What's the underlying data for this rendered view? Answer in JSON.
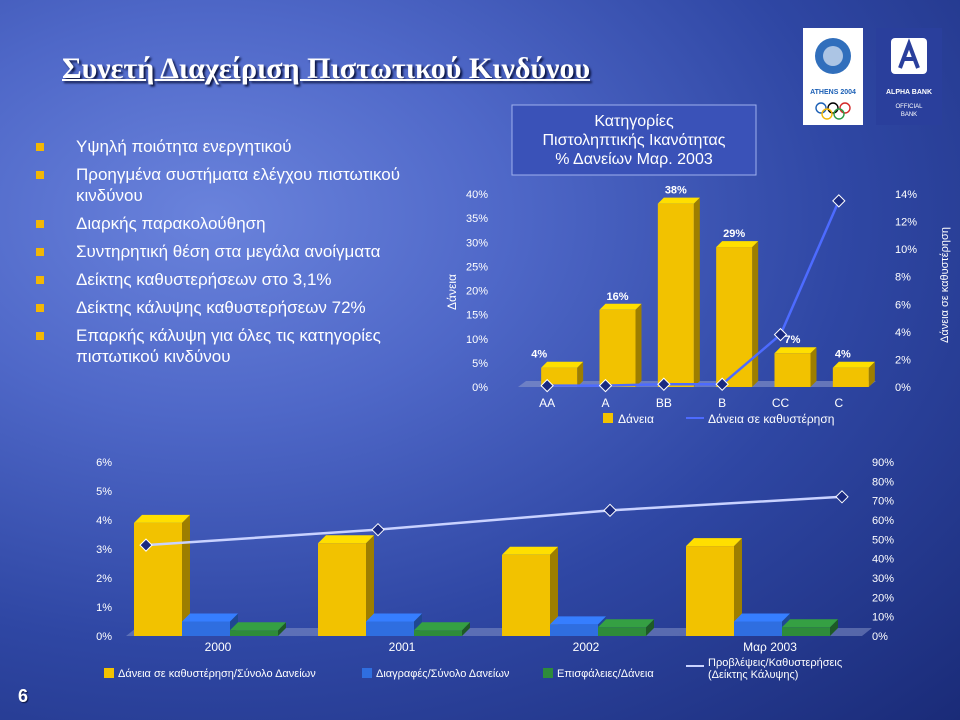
{
  "title": "Συνετή Διαχείριση Πιστωτικού Κινδύνου",
  "page_number": "6",
  "bullets": [
    [
      "Υψηλή ποιότητα ενεργητικού"
    ],
    [
      "Προηγμένα συστήματα ελέγχου πιστωτικού",
      "κινδύνου"
    ],
    [
      "Διαρκής παρακολούθηση"
    ],
    [
      "Συντηρητική θέση στα μεγάλα ανοίγματα"
    ],
    [
      "Δείκτης καθυστερήσεων στο 3,1%"
    ],
    [
      "Δείκτης κάλυψης καθυστερήσεων 72%"
    ],
    [
      "Επαρκής κάλυψη για όλες τις κατηγορίες",
      "πιστωτικού κινδύνου"
    ]
  ],
  "logos": {
    "athens": {
      "text": "ATHENS 2004",
      "colors": [
        "#1b5fb5",
        "#000000",
        "#d42a2a",
        "#f2b705",
        "#2a9a44"
      ]
    },
    "alpha": {
      "line1": "ALPHA BANK",
      "line2a": "OFFICIAL",
      "line2b": "BANK"
    }
  },
  "colors": {
    "bar_yellow": "#f2c200",
    "bar_blue": "#2f6ee0",
    "bar_green": "#2e8b3a",
    "line": "#4d6bff",
    "bullet": "#f2b705"
  },
  "chart_data": [
    {
      "type": "bar",
      "title_lines": [
        "Κατηγορίες",
        "Πιστοληπτικής Ικανότητας",
        "% Δανείων Μαρ. 2003"
      ],
      "categories": [
        "AA",
        "A",
        "BB",
        "B",
        "CC",
        "C"
      ],
      "ylim": [
        0,
        40
      ],
      "yticks": [
        "0%",
        "5%",
        "10%",
        "15%",
        "20%",
        "25%",
        "30%",
        "35%",
        "40%"
      ],
      "ylabel": "Δάνεια",
      "y2lim": [
        0,
        14
      ],
      "y2ticks": [
        "0%",
        "2%",
        "4%",
        "6%",
        "8%",
        "10%",
        "12%",
        "14%"
      ],
      "y2label": "Δάνεια σε καθυστέρηση",
      "series": [
        {
          "name": "Δάνεια",
          "axis": "left",
          "kind": "bar3d",
          "values": [
            4,
            16,
            38,
            29,
            7,
            4
          ],
          "labels": [
            "4%",
            "16%",
            "38%",
            "29%",
            "7%",
            "4%"
          ]
        },
        {
          "name": "Δάνεια σε καθυστέρηση",
          "axis": "right",
          "kind": "line",
          "values": [
            0.1,
            0.1,
            0.2,
            0.2,
            3.8,
            13.5
          ]
        }
      ],
      "legend": "bottom"
    },
    {
      "type": "bar",
      "categories": [
        "2000",
        "2001",
        "2002",
        "Μαρ 2003"
      ],
      "ylim": [
        0,
        6
      ],
      "yticks": [
        "0%",
        "1%",
        "2%",
        "3%",
        "4%",
        "5%",
        "6%"
      ],
      "y2lim": [
        0,
        90
      ],
      "y2ticks": [
        "0%",
        "10%",
        "20%",
        "30%",
        "40%",
        "50%",
        "60%",
        "70%",
        "80%",
        "90%"
      ],
      "series": [
        {
          "name": "Δάνεια σε καθυστέρηση/Σύνολο Δανείων",
          "axis": "left",
          "kind": "bar3d",
          "values": [
            3.9,
            3.2,
            2.8,
            3.1
          ]
        },
        {
          "name": "Διαγραφές/Σύνολο Δανείων",
          "axis": "left",
          "kind": "bar3d",
          "values": [
            0.5,
            0.5,
            0.4,
            0.5
          ]
        },
        {
          "name": "Επισφάλειες/Δάνεια",
          "axis": "left",
          "kind": "bar3d",
          "values": [
            0.2,
            0.2,
            0.3,
            0.3
          ]
        },
        {
          "name_lines": [
            "Προβλέψεις/Καθυστερήσεις",
            "(Δείκτης Κάλυψης)"
          ],
          "axis": "right",
          "kind": "line",
          "values": [
            47,
            55,
            65,
            72
          ]
        }
      ],
      "legend": "bottom"
    }
  ]
}
